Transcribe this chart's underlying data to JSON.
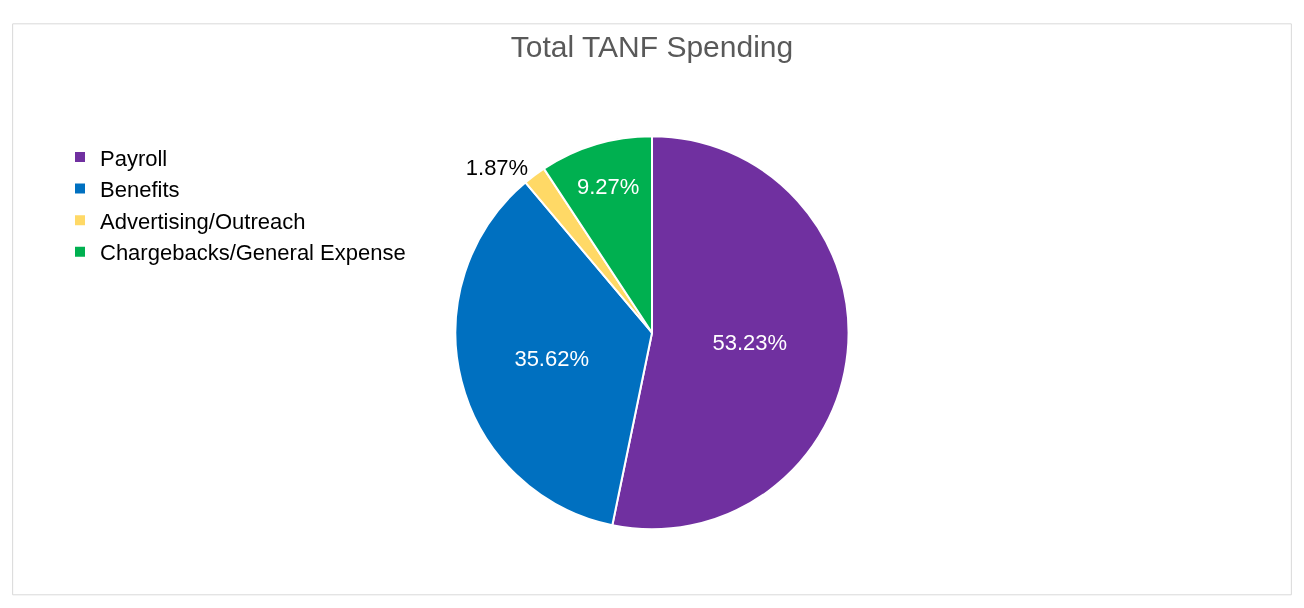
{
  "chart_data": {
    "type": "pie",
    "title": "Total TANF Spending",
    "categories": [
      "Payroll",
      "Benefits",
      "Advertising/Outreach",
      "Chargebacks/General Expense"
    ],
    "values": [
      53.23,
      35.62,
      1.87,
      9.27
    ],
    "colors": [
      "#7030a0",
      "#0070c0",
      "#ffd966",
      "#00b050"
    ],
    "value_labels": [
      "53.23%",
      "35.62%",
      "1.87%",
      "9.27%"
    ],
    "legend": "left"
  }
}
